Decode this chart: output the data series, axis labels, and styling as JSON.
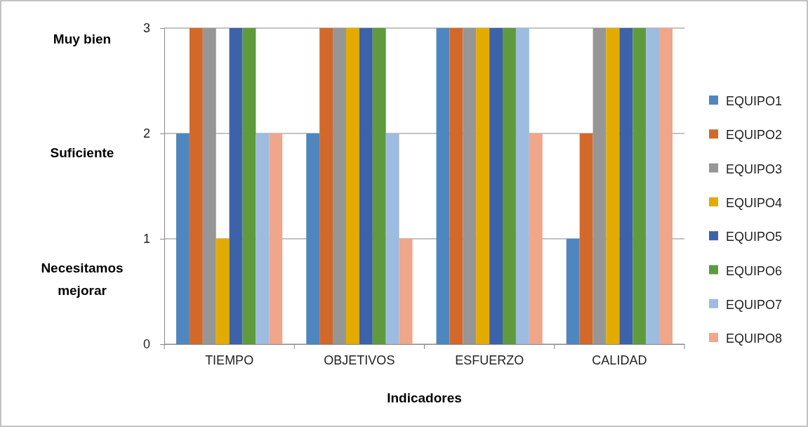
{
  "chart_data": {
    "type": "bar",
    "xlabel": "Indicadores",
    "categories": [
      "TIEMPO",
      "OBJETIVOS",
      "ESFUERZO",
      "CALIDAD"
    ],
    "series": [
      {
        "name": "EQUIPO1",
        "color": "#4f86c0",
        "values": [
          2,
          2,
          3,
          1
        ]
      },
      {
        "name": "EQUIPO2",
        "color": "#d2692a",
        "values": [
          3,
          3,
          3,
          2
        ]
      },
      {
        "name": "EQUIPO3",
        "color": "#969696",
        "values": [
          3,
          3,
          3,
          3
        ]
      },
      {
        "name": "EQUIPO4",
        "color": "#e3ab00",
        "values": [
          1,
          3,
          3,
          3
        ]
      },
      {
        "name": "EQUIPO5",
        "color": "#3c62aa",
        "values": [
          3,
          3,
          3,
          3
        ]
      },
      {
        "name": "EQUIPO6",
        "color": "#5f9b3c",
        "values": [
          3,
          3,
          3,
          3
        ]
      },
      {
        "name": "EQUIPO7",
        "color": "#9dbce0",
        "values": [
          2,
          2,
          3,
          3
        ]
      },
      {
        "name": "EQUIPO8",
        "color": "#f0a68a",
        "values": [
          2,
          1,
          2,
          3
        ]
      }
    ],
    "ylim": [
      0,
      3
    ],
    "yticks": [
      0,
      1,
      2,
      3
    ],
    "grid": "y",
    "legend": "right",
    "annotations": [
      "Muy bien",
      "Suficiente",
      "Necesitamos mejorar"
    ]
  }
}
